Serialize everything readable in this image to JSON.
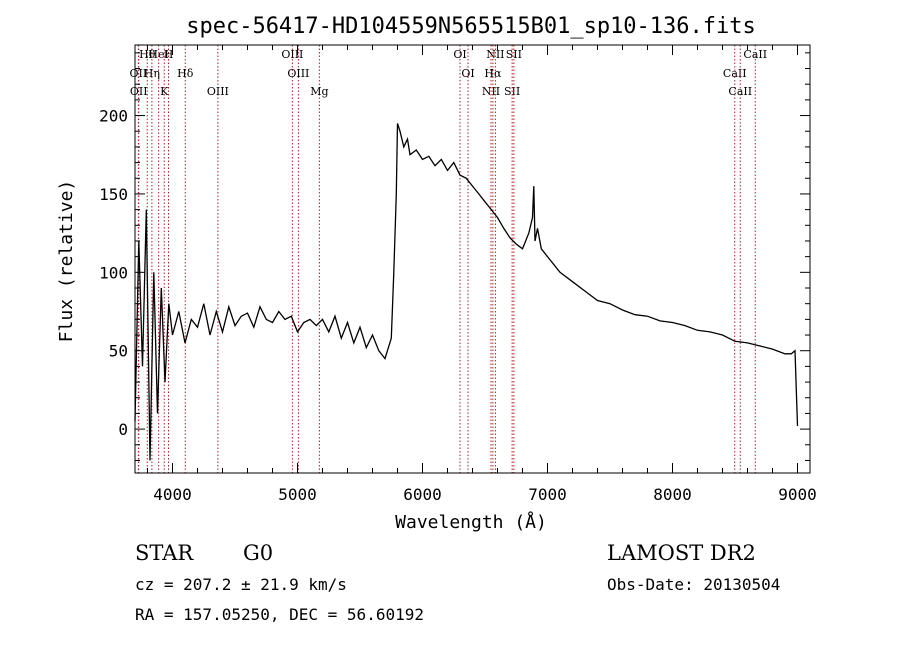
{
  "chart_data": {
    "type": "line",
    "title": "spec-56417-HD104559N565515B01_sp10-136.fits",
    "xlabel": "Wavelength (Å)",
    "ylabel": "Flux (relative)",
    "xlim": [
      3700,
      9100
    ],
    "ylim": [
      -28,
      245
    ],
    "xticks": [
      4000,
      5000,
      6000,
      7000,
      8000,
      9000
    ],
    "yticks": [
      0,
      50,
      100,
      150,
      200
    ],
    "grid": false,
    "series": [
      {
        "x": [
          3700,
          3730,
          3760,
          3790,
          3820,
          3850,
          3880,
          3910,
          3940,
          3970,
          4000,
          4050,
          4100,
          4150,
          4200,
          4250,
          4300,
          4350,
          4400,
          4450,
          4500,
          4550,
          4600,
          4650,
          4700,
          4750,
          4800,
          4850,
          4900,
          4950,
          5000,
          5050,
          5100,
          5150,
          5200,
          5250,
          5300,
          5350,
          5400,
          5450,
          5500,
          5550,
          5600,
          5650,
          5700,
          5750,
          5770,
          5790,
          5800,
          5820,
          5850,
          5880,
          5900,
          5950,
          6000,
          6050,
          6100,
          6150,
          6200,
          6250,
          6300,
          6350,
          6400,
          6450,
          6500,
          6550,
          6600,
          6650,
          6700,
          6750,
          6800,
          6850,
          6880,
          6890,
          6900,
          6920,
          6950,
          7000,
          7100,
          7200,
          7300,
          7400,
          7500,
          7600,
          7700,
          7800,
          7900,
          8000,
          8100,
          8200,
          8300,
          8400,
          8500,
          8600,
          8700,
          8800,
          8900,
          8950,
          8980,
          9000
        ],
        "y": [
          5,
          120,
          40,
          140,
          -20,
          100,
          10,
          90,
          30,
          80,
          60,
          75,
          55,
          70,
          65,
          80,
          60,
          75,
          62,
          78,
          66,
          72,
          74,
          65,
          78,
          70,
          68,
          75,
          70,
          72,
          62,
          68,
          70,
          66,
          70,
          62,
          72,
          58,
          68,
          55,
          65,
          52,
          60,
          50,
          45,
          58,
          100,
          150,
          195,
          190,
          180,
          185,
          175,
          178,
          172,
          174,
          168,
          172,
          165,
          170,
          162,
          160,
          155,
          150,
          145,
          140,
          135,
          128,
          122,
          118,
          115,
          125,
          135,
          155,
          120,
          128,
          115,
          110,
          100,
          94,
          88,
          82,
          80,
          76,
          73,
          72,
          69,
          68,
          66,
          63,
          62,
          60,
          56,
          55,
          53,
          51,
          48,
          48,
          50,
          2
        ]
      }
    ],
    "lines": [
      {
        "name": "Hθ",
        "x": 3798
      },
      {
        "name": "OII",
        "x": 3727
      },
      {
        "name": "OII",
        "x": 3730
      },
      {
        "name": "HeI",
        "x": 3889
      },
      {
        "name": "Hη",
        "x": 3835
      },
      {
        "name": "K",
        "x": 3934
      },
      {
        "name": "H",
        "x": 3968
      },
      {
        "name": "Hδ",
        "x": 4102
      },
      {
        "name": "OIII",
        "x": 4363
      },
      {
        "name": "OIII",
        "x": 4959
      },
      {
        "name": "OIII",
        "x": 5007
      },
      {
        "name": "Mg",
        "x": 5175
      },
      {
        "name": "OI",
        "x": 6300
      },
      {
        "name": "OI",
        "x": 6364
      },
      {
        "name": "NII",
        "x": 6548
      },
      {
        "name": "NII",
        "x": 6583
      },
      {
        "name": "Hα",
        "x": 6563
      },
      {
        "name": "SII",
        "x": 6717
      },
      {
        "name": "SII",
        "x": 6731
      },
      {
        "name": "CaII",
        "x": 8498
      },
      {
        "name": "CaII",
        "x": 8542
      },
      {
        "name": "CaII",
        "x": 8662
      }
    ],
    "line_color": "#b22222",
    "series_color": "#000000"
  },
  "info": {
    "class": "STAR",
    "subclass": "G0",
    "survey": "LAMOST DR2",
    "cz": "cz = 207.2 ± 21.9 km/s",
    "obs_date": "Obs-Date: 20130504",
    "coords": "RA = 157.05250, DEC =  56.60192"
  }
}
